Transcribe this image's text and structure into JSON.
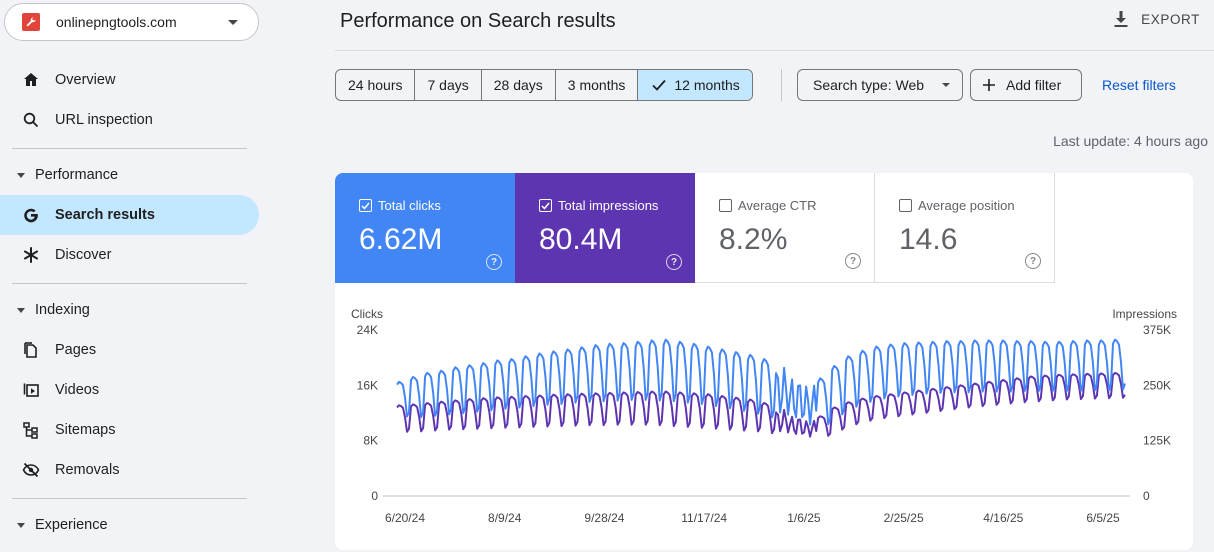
{
  "property": {
    "name": "onlinepngtools.com"
  },
  "nav": {
    "overview": "Overview",
    "url_inspection": "URL inspection",
    "performance_section": "Performance",
    "search_results": "Search results",
    "discover": "Discover",
    "indexing_section": "Indexing",
    "pages": "Pages",
    "videos": "Videos",
    "sitemaps": "Sitemaps",
    "removals": "Removals",
    "experience_section": "Experience"
  },
  "header": {
    "title": "Performance on Search results",
    "export_label": "EXPORT"
  },
  "filters": {
    "ranges": [
      "24 hours",
      "7 days",
      "28 days",
      "3 months",
      "12 months"
    ],
    "selected_range": "12 months",
    "search_type": "Search type: Web",
    "add_filter": "Add filter",
    "reset": "Reset filters"
  },
  "last_update": "Last update: 4 hours ago",
  "metrics": {
    "clicks": {
      "label": "Total clicks",
      "value": "6.62M",
      "checked": true,
      "color": "#4285f4"
    },
    "impressions": {
      "label": "Total impressions",
      "value": "80.4M",
      "checked": true,
      "color": "#5e35b1"
    },
    "ctr": {
      "label": "Average CTR",
      "value": "8.2%",
      "checked": false
    },
    "position": {
      "label": "Average position",
      "value": "14.6",
      "checked": false
    }
  },
  "chart_data": {
    "type": "line",
    "left_axis_label": "Clicks",
    "right_axis_label": "Impressions",
    "left_ticks": [
      "24K",
      "16K",
      "8K",
      "0"
    ],
    "right_ticks": [
      "375K",
      "250K",
      "125K",
      "0"
    ],
    "left_ylim": [
      0,
      24000
    ],
    "right_ylim": [
      0,
      375000
    ],
    "x_ticks": [
      "6/20/24",
      "8/9/24",
      "9/28/24",
      "11/17/24",
      "1/6/25",
      "2/25/25",
      "4/16/25",
      "6/5/25"
    ],
    "x_range": [
      "2024-06-16",
      "2025-06-16"
    ],
    "grid": false,
    "series": [
      {
        "name": "Total clicks",
        "color": "#4285f4",
        "axis": "left",
        "weekly_peaks": [
          16500,
          17200,
          17800,
          18100,
          18600,
          18900,
          19200,
          19600,
          19800,
          20200,
          20600,
          20900,
          21200,
          21500,
          21800,
          22000,
          22100,
          22300,
          22500,
          22600,
          22300,
          22000,
          21600,
          21200,
          20800,
          20400,
          19800,
          18600,
          17000,
          16000,
          17000,
          18800,
          20200,
          21000,
          21600,
          21900,
          22100,
          22200,
          22300,
          22400,
          22400,
          22500,
          22500,
          22500,
          22400,
          22400,
          22300,
          22300,
          22400,
          22500,
          22500,
          22600
        ],
        "weekly_troughs": [
          11500,
          11400,
          11600,
          11800,
          12000,
          12200,
          12400,
          12600,
          12800,
          13000,
          13200,
          13300,
          13500,
          13600,
          13700,
          13800,
          13900,
          13900,
          13800,
          13700,
          13500,
          13300,
          13000,
          12700,
          12300,
          11900,
          11400,
          11000,
          10200,
          9700,
          10400,
          11800,
          12900,
          13600,
          14100,
          14400,
          14600,
          14800,
          14900,
          15000,
          15000,
          15100,
          15100,
          15100,
          15200,
          15200,
          15200,
          15200,
          15200,
          15300,
          15300,
          15400
        ]
      },
      {
        "name": "Total impressions",
        "color": "#5e35b1",
        "axis": "right",
        "weekly_peaks": [
          205000,
          207000,
          210000,
          213000,
          216000,
          219000,
          221000,
          223000,
          224000,
          226000,
          227000,
          229000,
          230000,
          231000,
          232000,
          233000,
          234000,
          235000,
          236000,
          236000,
          234000,
          232000,
          230000,
          226000,
          222000,
          218000,
          210000,
          195000,
          180000,
          170000,
          180000,
          200000,
          212000,
          220000,
          226000,
          230000,
          234000,
          238000,
          242000,
          246000,
          250000,
          254000,
          258000,
          262000,
          266000,
          270000,
          272000,
          274000,
          275000,
          276000,
          277000,
          278000
        ],
        "weekly_troughs": [
          145000,
          146000,
          148000,
          150000,
          151000,
          152000,
          153000,
          154000,
          155000,
          156000,
          157000,
          158000,
          159000,
          160000,
          160000,
          161000,
          161000,
          161000,
          160000,
          158000,
          156000,
          154000,
          152000,
          150000,
          148000,
          146000,
          142000,
          138000,
          132000,
          130000,
          136000,
          150000,
          162000,
          170000,
          176000,
          180000,
          184000,
          188000,
          192000,
          196000,
          200000,
          203000,
          206000,
          209000,
          212000,
          214000,
          216000,
          218000,
          219000,
          220000,
          221000,
          222000
        ]
      }
    ]
  }
}
